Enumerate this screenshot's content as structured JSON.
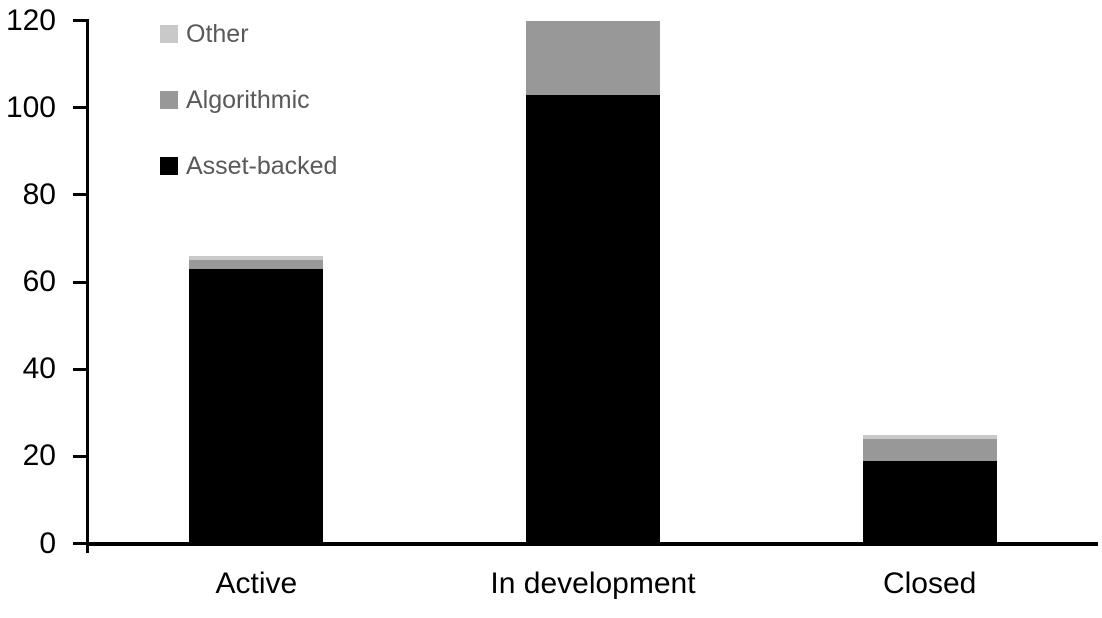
{
  "chart_data": {
    "type": "bar",
    "stacked": true,
    "title": "",
    "categories": [
      "Active",
      "In development",
      "Closed"
    ],
    "series": [
      {
        "name": "Asset-backed",
        "color": "#000000",
        "values": [
          63,
          103,
          19
        ]
      },
      {
        "name": "Algorithmic",
        "color": "#989898",
        "values": [
          2,
          17,
          5
        ]
      },
      {
        "name": "Other",
        "color": "#c9c9c9",
        "values": [
          1,
          0,
          1
        ]
      }
    ],
    "totals": [
      66,
      120,
      25
    ],
    "xlabel": "",
    "ylabel": "",
    "ylim": [
      0,
      120
    ],
    "yticks": [
      0,
      20,
      40,
      60,
      80,
      100,
      120
    ],
    "grid": false,
    "legend_position": "top-left",
    "legend_order_top_to_bottom": [
      "Other",
      "Algorithmic",
      "Asset-backed"
    ],
    "colors": {
      "axis": "#000000",
      "tick_label": "#000000",
      "category_label": "#000000",
      "legend_text": "#595959",
      "background": "#ffffff"
    }
  }
}
